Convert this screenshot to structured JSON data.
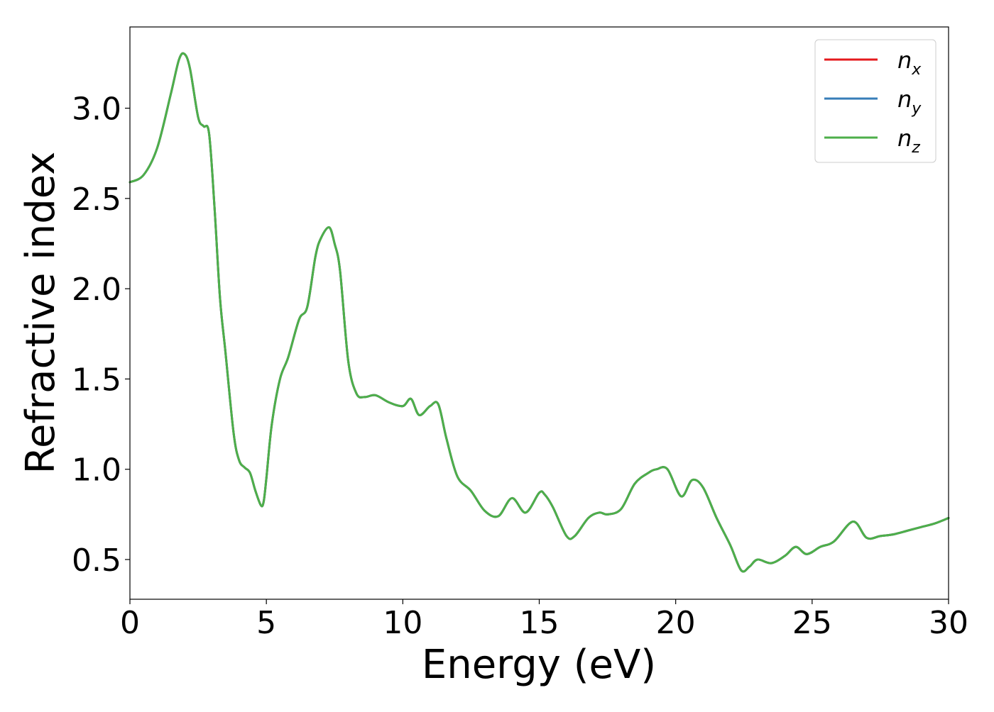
{
  "chart_data": {
    "type": "line",
    "title": "",
    "xlabel": "Energy (eV)",
    "ylabel": "Refractive index",
    "xlim": [
      0,
      30
    ],
    "ylim": [
      0.28,
      3.45
    ],
    "xticks": [
      0,
      5,
      10,
      15,
      20,
      25,
      30
    ],
    "xtick_labels": [
      "0",
      "5",
      "10",
      "15",
      "20",
      "25",
      "30"
    ],
    "yticks": [
      0.5,
      1.0,
      1.5,
      2.0,
      2.5,
      3.0
    ],
    "ytick_labels": [
      "0.5",
      "1.0",
      "1.5",
      "2.0",
      "2.5",
      "3.0"
    ],
    "grid": false,
    "legend_position": "top-right",
    "series": [
      {
        "name": "n_x",
        "legend_base": "n",
        "legend_sub": "x",
        "color": "#e41a1c"
      },
      {
        "name": "n_y",
        "legend_base": "n",
        "legend_sub": "y",
        "color": "#377eb8"
      },
      {
        "name": "n_z",
        "legend_base": "n",
        "legend_sub": "z",
        "color": "#4daf4a"
      }
    ],
    "x": [
      0,
      0.5,
      1.0,
      1.5,
      1.8,
      2.0,
      2.2,
      2.5,
      2.7,
      2.9,
      3.1,
      3.3,
      3.5,
      3.8,
      4.0,
      4.2,
      4.4,
      4.6,
      4.8,
      4.9,
      5.0,
      5.2,
      5.5,
      5.8,
      6.2,
      6.5,
      6.8,
      7.0,
      7.3,
      7.5,
      7.7,
      8.0,
      8.3,
      8.6,
      9.0,
      9.5,
      10.0,
      10.3,
      10.6,
      11.0,
      11.3,
      11.6,
      12.0,
      12.5,
      13.0,
      13.5,
      14.0,
      14.5,
      15.0,
      15.2,
      15.5,
      16.0,
      16.3,
      16.8,
      17.2,
      17.5,
      18.0,
      18.5,
      19.0,
      19.3,
      19.7,
      20.2,
      20.6,
      21.0,
      21.5,
      22.0,
      22.4,
      22.7,
      23.0,
      23.5,
      24.0,
      24.4,
      24.8,
      25.3,
      25.8,
      26.5,
      27.0,
      27.5,
      28.0,
      28.5,
      29.0,
      29.5,
      30.0
    ],
    "y": [
      2.59,
      2.63,
      2.78,
      3.08,
      3.27,
      3.3,
      3.22,
      2.95,
      2.9,
      2.86,
      2.45,
      1.95,
      1.65,
      1.2,
      1.05,
      1.01,
      0.98,
      0.88,
      0.8,
      0.82,
      0.95,
      1.25,
      1.5,
      1.62,
      1.83,
      1.9,
      2.18,
      2.28,
      2.34,
      2.25,
      2.1,
      1.6,
      1.42,
      1.4,
      1.41,
      1.37,
      1.35,
      1.39,
      1.3,
      1.35,
      1.36,
      1.17,
      0.96,
      0.88,
      0.77,
      0.74,
      0.84,
      0.76,
      0.87,
      0.86,
      0.79,
      0.63,
      0.63,
      0.73,
      0.76,
      0.75,
      0.78,
      0.92,
      0.98,
      1.0,
      1.0,
      0.85,
      0.94,
      0.9,
      0.73,
      0.58,
      0.44,
      0.46,
      0.5,
      0.48,
      0.52,
      0.57,
      0.53,
      0.57,
      0.6,
      0.71,
      0.62,
      0.63,
      0.64,
      0.66,
      0.68,
      0.7,
      0.73
    ]
  }
}
